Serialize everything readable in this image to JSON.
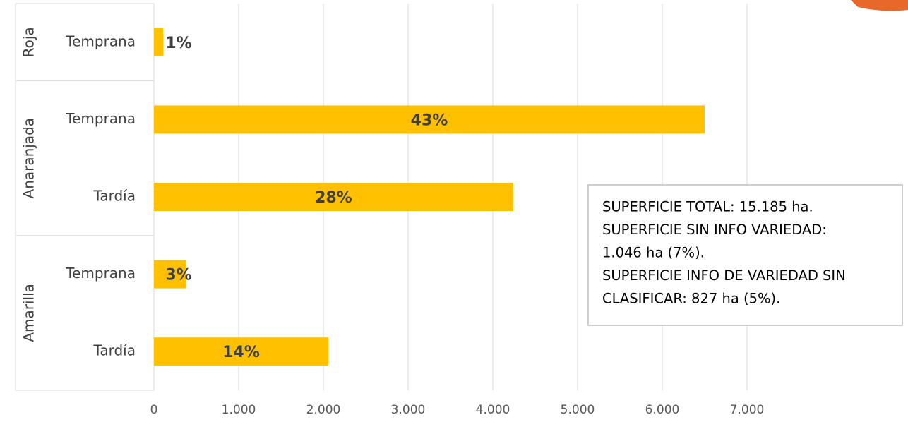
{
  "chart_data": {
    "type": "bar",
    "orientation": "horizontal",
    "categories": [
      "Temprana",
      "Temprana",
      "Tardía",
      "Temprana",
      "Tardía"
    ],
    "category_groups": [
      "Roja",
      "Anaranjada",
      "Anaranjada",
      "Amarilla",
      "Amarilla"
    ],
    "values": [
      110,
      6500,
      4240,
      380,
      2060
    ],
    "value_labels": [
      "1%",
      "43%",
      "28%",
      "3%",
      "14%"
    ],
    "color": "#ffc000",
    "xlim": [
      0,
      7000
    ],
    "xticks": [
      0,
      {
        "value": 1000,
        "label": "1.000"
      },
      {
        "value": 2000,
        "label": "2.000"
      },
      {
        "value": 3000,
        "label": "3.000"
      },
      {
        "value": 4000,
        "label": "4.000"
      },
      {
        "value": 5000,
        "label": "5.000"
      },
      {
        "value": 6000,
        "label": "6.000"
      },
      {
        "value": 7000,
        "label": "7.000"
      }
    ],
    "grid": true,
    "annotation": [
      "SUPERFICIE TOTAL: 15.185 ha.",
      "SUPERFICIE SIN INFO VARIEDAD:",
      "1.046 ha (7%).",
      "SUPERFICIE INFO DE VARIEDAD SIN",
      "CLASIFICAR: 827 ha (5%)."
    ]
  }
}
